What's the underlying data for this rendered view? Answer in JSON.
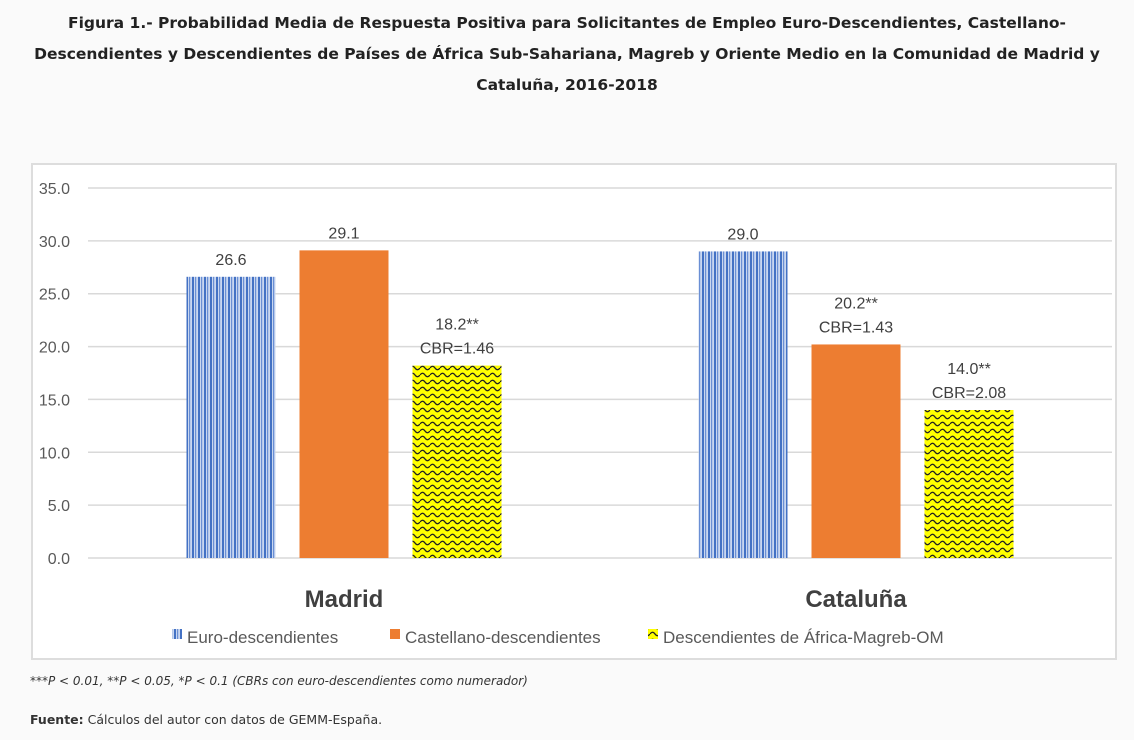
{
  "title_lines": [
    "Figura 1.- Probabilidad Media de Respuesta Positiva para Solicitantes de Empleo Euro-Descendientes, Castellano-",
    "Descendientes y Descendientes de Países de África Sub-Sahariana, Magreb y Oriente Medio en la Comunidad de Madrid y",
    "Cataluña, 2016-2018"
  ],
  "footnote": "***P < 0.01, **P < 0.05, *P < 0.1  (CBRs con euro-descendientes como numerador)",
  "source": {
    "label": "Fuente:",
    "text": " Cálculos del autor con datos de GEMM-España."
  },
  "chart_data": {
    "type": "bar",
    "title": "Figura 1.- Probabilidad Media de Respuesta Positiva para Solicitantes de Empleo Euro-Descendientes, Castellano-Descendientes y Descendientes de Países de África Sub-Sahariana, Magreb y Oriente Medio en la Comunidad de Madrid y Cataluña, 2016-2018",
    "categories": [
      "Madrid",
      "Cataluña"
    ],
    "series": [
      {
        "name": "Euro-descendientes",
        "values": [
          26.6,
          29.0
        ],
        "labels": [
          [
            "26.6"
          ],
          [
            "29.0"
          ]
        ],
        "color": "#4472c4",
        "pattern": "vertical-lines"
      },
      {
        "name": "Castellano-descendientes",
        "values": [
          29.1,
          20.2
        ],
        "labels": [
          [
            "29.1"
          ],
          [
            "20.2**",
            "CBR=1.43"
          ]
        ],
        "color": "#ed7d31",
        "pattern": "solid"
      },
      {
        "name": "Descendientes de África-Magreb-OM",
        "values": [
          18.2,
          14.0
        ],
        "labels": [
          [
            "18.2**",
            "CBR=1.46"
          ],
          [
            "14.0**",
            "CBR=2.08"
          ]
        ],
        "color": "#ffff00",
        "pattern": "wave"
      }
    ],
    "yticks": [
      "0.0",
      "5.0",
      "10.0",
      "15.0",
      "20.0",
      "25.0",
      "30.0",
      "35.0"
    ],
    "ylim": [
      0,
      35
    ],
    "xlabel": "",
    "ylabel": "",
    "grid": true,
    "legend_position": "bottom"
  }
}
